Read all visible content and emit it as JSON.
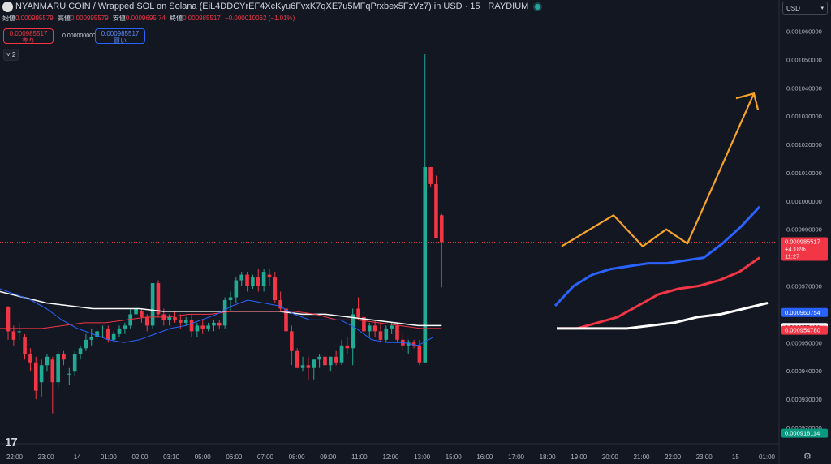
{
  "header": {
    "title": "NYANMARU COIN / Wrapped SOL on Solana (EiL4DDCYrEF4XcKyu6FvxK7qXE7u5MFqPrxbex5FzVz7) in USD · 15 · RAYDIUM"
  },
  "ohlc": {
    "open_label": "始値",
    "open": "0.000995579",
    "high_label": "高値",
    "high": "0.000995579",
    "low_label": "安値",
    "low": "0.0009695 74",
    "close_label": "終値",
    "close": "0.000985517",
    "change": "−0.000010062 (−1.01%)"
  },
  "trade": {
    "sell_price": "0.000985517",
    "sell_label": "売り",
    "spread": "0.000000000",
    "buy_price": "0.000985517",
    "buy_label": "買い"
  },
  "indicators_toggle": "2",
  "currency": "USD",
  "price_axis": {
    "ticks": [
      "0.001060000",
      "0.001050000",
      "0.001040000",
      "0.001030000",
      "0.001020000",
      "0.001010000",
      "0.001000000",
      "0.000990000",
      "0.000970000",
      "0.000950000",
      "0.000940000",
      "0.000930000",
      "0.000920000"
    ],
    "labels": [
      {
        "text": "0.000985517",
        "color": "#f23645"
      },
      {
        "text": "+4.18%",
        "color": "#f23645"
      },
      {
        "text": "11:27",
        "color": "#f23645"
      },
      {
        "text": "0.000960754",
        "color": "#2962ff"
      },
      {
        "text": "0.000955481",
        "color": "#ffffff"
      },
      {
        "text": "0.000954780",
        "color": "#f23645"
      },
      {
        "text": "0.000918114",
        "color": "#089981"
      }
    ]
  },
  "time_axis": [
    "22:00",
    "23:00",
    "14",
    "01:00",
    "02:00",
    "03:30",
    "05:00",
    "06:00",
    "07:00",
    "08:00",
    "09:00",
    "11:00",
    "12:00",
    "13:00",
    "15:00",
    "16:00",
    "17:00",
    "18:00",
    "19:00",
    "20:00",
    "21:00",
    "22:00",
    "23:00",
    "15",
    "01:00"
  ],
  "colors": {
    "bg": "#131722",
    "up": "#22ab94",
    "down": "#f23645",
    "ma_blue": "#2962ff",
    "ma_red": "#f23645",
    "ma_white": "#ffffff",
    "arrow": "#f7a325"
  },
  "chart_data": {
    "type": "candlestick",
    "candles": [
      [
        0.0009625,
        0.000963,
        0.000951,
        0.000954
      ],
      [
        0.000954,
        0.000956,
        0.000949,
        0.000951
      ],
      [
        0.000954,
        0.000957,
        0.000951,
        0.000954
      ],
      [
        0.000952,
        0.000953,
        0.000944,
        0.000946
      ],
      [
        0.000946,
        0.000948,
        0.00094,
        0.000943
      ],
      [
        0.000943,
        0.000945,
        0.00093,
        0.000933
      ],
      [
        0.000936,
        0.000944,
        0.000931,
        0.000942
      ],
      [
        0.000942,
        0.000946,
        0.00094,
        0.000945
      ],
      [
        0.000944,
        0.000945,
        0.000925,
        0.000936
      ],
      [
        0.000936,
        0.000947,
        0.000934,
        0.000946
      ],
      [
        0.000946,
        0.000947,
        0.000942,
        0.000944
      ],
      [
        0.000939,
        0.000941,
        0.000935,
        0.000939
      ],
      [
        0.00094,
        0.000947,
        0.000938,
        0.000946
      ],
      [
        0.000946,
        0.000949,
        0.000944,
        0.000948
      ],
      [
        0.000948,
        0.000953,
        0.000947,
        0.000951
      ],
      [
        0.000951,
        0.000955,
        0.000949,
        0.000952
      ],
      [
        0.000952,
        0.000955,
        0.000951,
        0.000954
      ],
      [
        0.000955,
        0.000956,
        0.000952,
        0.000955
      ],
      [
        0.000955,
        0.000956,
        0.00095,
        0.000951
      ],
      [
        0.000951,
        0.000954,
        0.00095,
        0.000953
      ],
      [
        0.000953,
        0.000956,
        0.000952,
        0.000955
      ],
      [
        0.000955,
        0.000957,
        0.000953,
        0.000956
      ],
      [
        0.000956,
        0.000962,
        0.000955,
        0.00096
      ],
      [
        0.00096,
        0.000964,
        0.000958,
        0.000962
      ],
      [
        0.000961,
        0.000962,
        0.000957,
        0.000959
      ],
      [
        0.000959,
        0.00096,
        0.000954,
        0.000956
      ],
      [
        0.000956,
        0.000971,
        0.000955,
        0.000971
      ],
      [
        0.000971,
        0.000972,
        0.000959,
        0.00096
      ],
      [
        0.00096,
        0.000962,
        0.000956,
        0.000958
      ],
      [
        0.000958,
        0.00096,
        0.000956,
        0.000959
      ],
      [
        0.000959,
        0.000961,
        0.000957,
        0.000958
      ],
      [
        0.000958,
        0.00096,
        0.000955,
        0.000957
      ],
      [
        0.000957,
        0.000959,
        0.000956,
        0.000958
      ],
      [
        0.000958,
        0.00096,
        0.000952,
        0.000954
      ],
      [
        0.000954,
        0.000957,
        0.000952,
        0.000956
      ],
      [
        0.000956,
        0.000958,
        0.000953,
        0.000955
      ],
      [
        0.000955,
        0.000957,
        0.000954,
        0.000956
      ],
      [
        0.000956,
        0.000958,
        0.000954,
        0.000957
      ],
      [
        0.000957,
        0.000958,
        0.000955,
        0.000956
      ],
      [
        0.000956,
        0.000966,
        0.000955,
        0.000965
      ],
      [
        0.000965,
        0.000968,
        0.000961,
        0.000966
      ],
      [
        0.000966,
        0.000973,
        0.000964,
        0.000972
      ],
      [
        0.000972,
        0.000975,
        0.00097,
        0.000974
      ],
      [
        0.000974,
        0.000975,
        0.000968,
        0.00097
      ],
      [
        0.00097,
        0.000974,
        0.000969,
        0.000973
      ],
      [
        0.000973,
        0.000976,
        0.000968,
        0.00097
      ],
      [
        0.00097,
        0.000976,
        0.000968,
        0.000975
      ],
      [
        0.000974,
        0.000976,
        0.00097,
        0.000973
      ],
      [
        0.000973,
        0.000975,
        0.000964,
        0.000965
      ],
      [
        0.000965,
        0.000968,
        0.000961,
        0.000962
      ],
      [
        0.000962,
        0.000968,
        0.000952,
        0.000954
      ],
      [
        0.000954,
        0.000956,
        0.000942,
        0.000947
      ],
      [
        0.000947,
        0.000948,
        0.000941,
        0.000941
      ],
      [
        0.000941,
        0.000945,
        0.00094,
        0.000942
      ],
      [
        0.000942,
        0.000945,
        0.000937,
        0.000941
      ],
      [
        0.000941,
        0.000944,
        0.000937,
        0.000944
      ],
      [
        0.000944,
        0.000946,
        0.000941,
        0.000945
      ],
      [
        0.000945,
        0.000946,
        0.000941,
        0.000942
      ],
      [
        0.000942,
        0.000945,
        0.00094,
        0.000945
      ],
      [
        0.000945,
        0.000947,
        0.000942,
        0.000943
      ],
      [
        0.000943,
        0.000951,
        0.000942,
        0.000949
      ],
      [
        0.000949,
        0.000952,
        0.000946,
        0.000948
      ],
      [
        0.000948,
        0.000962,
        0.000942,
        0.00096
      ],
      [
        0.000962,
        0.000966,
        0.000958,
        0.000959
      ],
      [
        0.000959,
        0.000961,
        0.000953,
        0.000954
      ],
      [
        0.000954,
        0.000957,
        0.000952,
        0.000956
      ],
      [
        0.000956,
        0.000958,
        0.000952,
        0.000954
      ],
      [
        0.000954,
        0.000957,
        0.00095,
        0.000951
      ],
      [
        0.000951,
        0.000956,
        0.00095,
        0.000955
      ],
      [
        0.000955,
        0.000957,
        0.000953,
        0.000956
      ],
      [
        0.000956,
        0.000957,
        0.00095,
        0.000951
      ],
      [
        0.000951,
        0.000953,
        0.000947,
        0.000949
      ],
      [
        0.000949,
        0.000951,
        0.000946,
        0.00095
      ],
      [
        0.00095,
        0.000951,
        0.000948,
        0.000949
      ],
      [
        0.000949,
        0.000951,
        0.000942,
        0.000943
      ],
      [
        0.000943,
        0.001052,
        0.000943,
        0.001012
      ],
      [
        0.001012,
        0.001012,
        0.001005,
        0.001006
      ],
      [
        0.001006,
        0.001009,
        0.000987,
        0.000987
      ],
      [
        0.000995,
        0.0009955,
        0.0009695,
        0.0009855
      ]
    ],
    "ma_blue": [
      [
        0.000969,
        0.000967,
        0.000965,
        0.000962,
        0.000958,
        0.000955,
        0.000953,
        0.000951,
        0.00095,
        0.000951,
        0.000953,
        0.000955,
        0.000956,
        0.000958,
        0.00096,
        0.000963,
        0.000965,
        0.000964,
        0.000963,
        0.00096,
        0.000958,
        0.000958,
        0.000958,
        0.000955,
        0.000951,
        0.00095,
        0.00095,
        0.000949,
        0.000952
      ]
    ],
    "ma_red": [
      0.000955,
      0.000955,
      0.000955,
      0.000956,
      0.000957,
      0.000957,
      0.000958,
      0.000959,
      0.000959,
      0.00096,
      0.00096,
      0.000961,
      0.000961,
      0.000961,
      0.000961,
      0.00096,
      0.000958,
      0.000958,
      0.000957,
      0.000956,
      0.000955,
      0.000955
    ],
    "ma_white": [
      0.000968,
      0.000966,
      0.000964,
      0.000963,
      0.000962,
      0.000962,
      0.000962,
      0.000961,
      0.000961,
      0.000961,
      0.000961,
      0.000961,
      0.000961,
      0.00096,
      0.00096,
      0.000959,
      0.000958,
      0.000957,
      0.000956,
      0.000956
    ],
    "projections": {
      "blue": [
        0.000963,
        0.00097,
        0.000974,
        0.000976,
        0.000977,
        0.000978,
        0.000978,
        0.000979,
        0.00098,
        0.000985,
        0.000991,
        0.000998
      ],
      "red": [
        0.000955,
        0.000955,
        0.000957,
        0.000959,
        0.000963,
        0.000967,
        0.000969,
        0.00097,
        0.000972,
        0.000975,
        0.00098
      ],
      "white": [
        0.000955,
        0.000955,
        0.000955,
        0.000955,
        0.000956,
        0.000957,
        0.000959,
        0.00096,
        0.000962,
        0.000964
      ],
      "arrow": [
        0.000984,
        0.000995,
        0.000984,
        0.00099,
        0.000985,
        0.001038
      ]
    },
    "y_range": [
      0.000918,
      0.001063
    ]
  }
}
